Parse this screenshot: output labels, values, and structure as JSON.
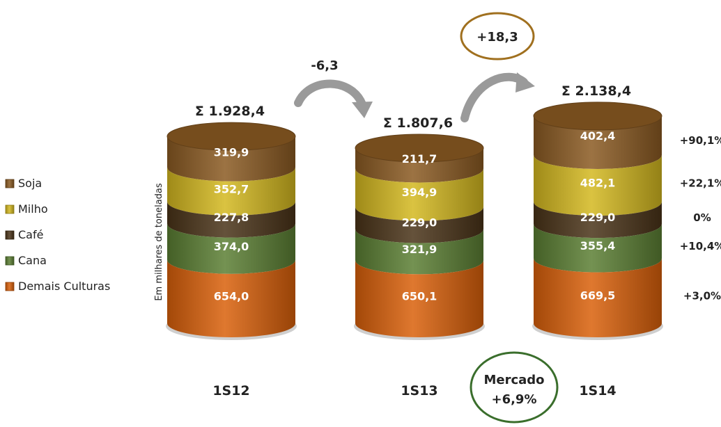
{
  "chart_data": {
    "type": "bar",
    "stacked": true,
    "ylabel": "Em milhares de toneladas",
    "categories": [
      "1S12",
      "1S13",
      "1S14"
    ],
    "totals": [
      "Σ  1.928,4",
      "Σ 1.807,6",
      "Σ 2.138,4"
    ],
    "series": [
      {
        "name": "Demais Culturas",
        "color": "#d9600a",
        "values": [
          654.0,
          650.1,
          669.5
        ],
        "labels": [
          "654,0",
          "650,1",
          "669,5"
        ]
      },
      {
        "name": "Cana",
        "color": "#5b7f33",
        "values": [
          374.0,
          321.9,
          355.4
        ],
        "labels": [
          "374,0",
          "321,9",
          "355,4"
        ]
      },
      {
        "name": "Café",
        "color": "#4a3418",
        "values": [
          227.8,
          229.0,
          229.0
        ],
        "labels": [
          "227,8",
          "229,0",
          "229,0"
        ]
      },
      {
        "name": "Milho",
        "color": "#d4b820",
        "values": [
          352.7,
          394.9,
          482.1
        ],
        "labels": [
          "352,7",
          "394,9",
          "482,1"
        ]
      },
      {
        "name": "Soja",
        "color": "#8b5a22",
        "values": [
          319.9,
          211.7,
          402.4
        ],
        "labels": [
          "319,9",
          "211,7",
          "402,4"
        ]
      }
    ],
    "legend_order": [
      "Soja",
      "Milho",
      "Café",
      "Cana",
      "Demais Culturas"
    ],
    "legend_position": "left",
    "growth_labels": {
      "Soja": "+90,1%",
      "Milho": "+22,1%",
      "Café": "0%",
      "Cana": "+10,4%",
      "Demais Culturas": "+3,0%"
    },
    "annotations": {
      "change_1": "-6,3",
      "change_2": "+18,3",
      "market_title": "Mercado",
      "market_value": "+6,9%"
    },
    "colors": {
      "change_circle": "#a0701f",
      "market_circle": "#3a6e2c",
      "arrow": "#9a9a9a"
    }
  }
}
